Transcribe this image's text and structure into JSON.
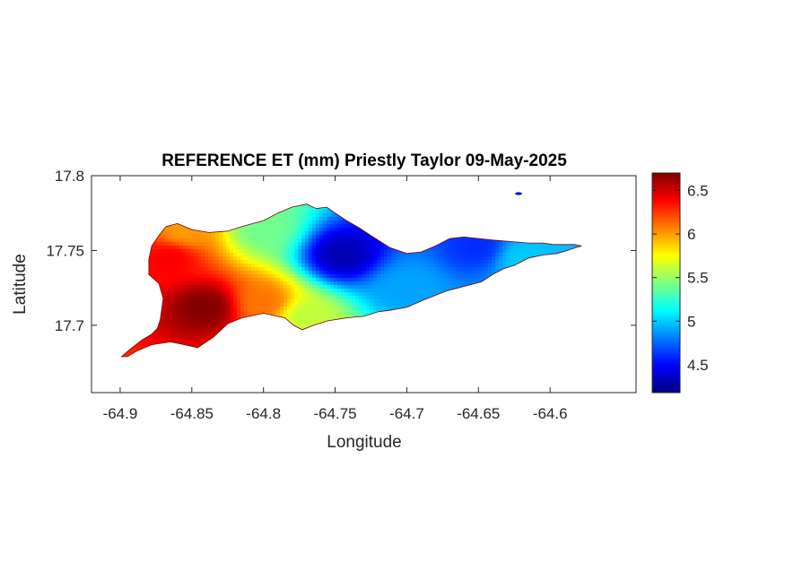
{
  "chart_data": {
    "type": "heatmap",
    "title": "REFERENCE ET (mm) Priestly Taylor 09-May-2025",
    "xlabel": "Longitude",
    "ylabel": "Latitude",
    "xlim": [
      -64.92,
      -64.54
    ],
    "ylim": [
      17.655,
      17.8
    ],
    "x_ticks": [
      -64.9,
      -64.85,
      -64.8,
      -64.75,
      -64.7,
      -64.65,
      -64.6
    ],
    "x_tick_labels": [
      "-64.9",
      "-64.85",
      "-64.8",
      "-64.75",
      "-64.7",
      "-64.65",
      "-64.6"
    ],
    "y_ticks": [
      17.7,
      17.75,
      17.8
    ],
    "y_tick_labels": [
      "17.7",
      "17.75",
      "17.8"
    ],
    "colorbar": {
      "colormap": "jet",
      "range": [
        4.18,
        6.7
      ],
      "ticks": [
        4.5,
        5,
        5.5,
        6,
        6.5
      ],
      "tick_labels": [
        "4.5",
        "5",
        "5.5",
        "6",
        "6.5"
      ],
      "position": "right"
    },
    "grid": false,
    "island_outline": [
      [
        -64.899,
        17.679
      ],
      [
        -64.893,
        17.684
      ],
      [
        -64.885,
        17.69
      ],
      [
        -64.878,
        17.694
      ],
      [
        -64.874,
        17.698
      ],
      [
        -64.872,
        17.704
      ],
      [
        -64.871,
        17.711
      ],
      [
        -64.87,
        17.718
      ],
      [
        -64.873,
        17.728
      ],
      [
        -64.88,
        17.734
      ],
      [
        -64.88,
        17.744
      ],
      [
        -64.878,
        17.753
      ],
      [
        -64.873,
        17.76
      ],
      [
        -64.868,
        17.766
      ],
      [
        -64.86,
        17.768
      ],
      [
        -64.85,
        17.764
      ],
      [
        -64.838,
        17.762
      ],
      [
        -64.825,
        17.763
      ],
      [
        -64.815,
        17.766
      ],
      [
        -64.8,
        17.77
      ],
      [
        -64.79,
        17.775
      ],
      [
        -64.78,
        17.779
      ],
      [
        -64.77,
        17.781
      ],
      [
        -64.763,
        17.778
      ],
      [
        -64.756,
        17.779
      ],
      [
        -64.75,
        17.775
      ],
      [
        -64.742,
        17.77
      ],
      [
        -64.733,
        17.765
      ],
      [
        -64.725,
        17.76
      ],
      [
        -64.712,
        17.752
      ],
      [
        -64.7,
        17.748
      ],
      [
        -64.69,
        17.749
      ],
      [
        -64.68,
        17.753
      ],
      [
        -64.67,
        17.758
      ],
      [
        -64.66,
        17.759
      ],
      [
        -64.65,
        17.758
      ],
      [
        -64.64,
        17.757
      ],
      [
        -64.628,
        17.756
      ],
      [
        -64.615,
        17.755
      ],
      [
        -64.605,
        17.755
      ],
      [
        -64.598,
        17.754
      ],
      [
        -64.59,
        17.754
      ],
      [
        -64.583,
        17.754
      ],
      [
        -64.578,
        17.753
      ],
      [
        -64.585,
        17.751
      ],
      [
        -64.595,
        17.748
      ],
      [
        -64.605,
        17.747
      ],
      [
        -64.615,
        17.745
      ],
      [
        -64.625,
        17.74
      ],
      [
        -64.632,
        17.738
      ],
      [
        -64.64,
        17.734
      ],
      [
        -64.648,
        17.729
      ],
      [
        -64.66,
        17.726
      ],
      [
        -64.672,
        17.723
      ],
      [
        -64.688,
        17.717
      ],
      [
        -64.7,
        17.712
      ],
      [
        -64.712,
        17.71
      ],
      [
        -64.72,
        17.709
      ],
      [
        -64.73,
        17.706
      ],
      [
        -64.742,
        17.705
      ],
      [
        -64.755,
        17.703
      ],
      [
        -64.765,
        17.7
      ],
      [
        -64.773,
        17.697
      ],
      [
        -64.779,
        17.7
      ],
      [
        -64.785,
        17.705
      ],
      [
        -64.8,
        17.708
      ],
      [
        -64.815,
        17.705
      ],
      [
        -64.825,
        17.701
      ],
      [
        -64.835,
        17.692
      ],
      [
        -64.846,
        17.685
      ],
      [
        -64.855,
        17.687
      ],
      [
        -64.865,
        17.689
      ],
      [
        -64.878,
        17.687
      ],
      [
        -64.888,
        17.683
      ],
      [
        -64.895,
        17.679
      ]
    ],
    "value_field": {
      "base": 5.05,
      "nodes": [
        {
          "lon": -64.84,
          "lat": 17.712,
          "value": 6.7
        },
        {
          "lon": -64.865,
          "lat": 17.745,
          "value": 6.4
        },
        {
          "lon": -64.8,
          "lat": 17.715,
          "value": 6.1
        },
        {
          "lon": -64.855,
          "lat": 17.763,
          "value": 6.0
        },
        {
          "lon": -64.77,
          "lat": 17.705,
          "value": 5.6
        },
        {
          "lon": -64.8,
          "lat": 17.765,
          "value": 5.4
        },
        {
          "lon": -64.745,
          "lat": 17.747,
          "value": 4.3
        },
        {
          "lon": -64.65,
          "lat": 17.752,
          "value": 4.6
        },
        {
          "lon": -64.62,
          "lat": 17.745,
          "value": 5.0
        },
        {
          "lon": -64.7,
          "lat": 17.725,
          "value": 4.9
        }
      ]
    },
    "islet": {
      "lon": -64.622,
      "lat": 17.788,
      "value": 4.2
    }
  }
}
